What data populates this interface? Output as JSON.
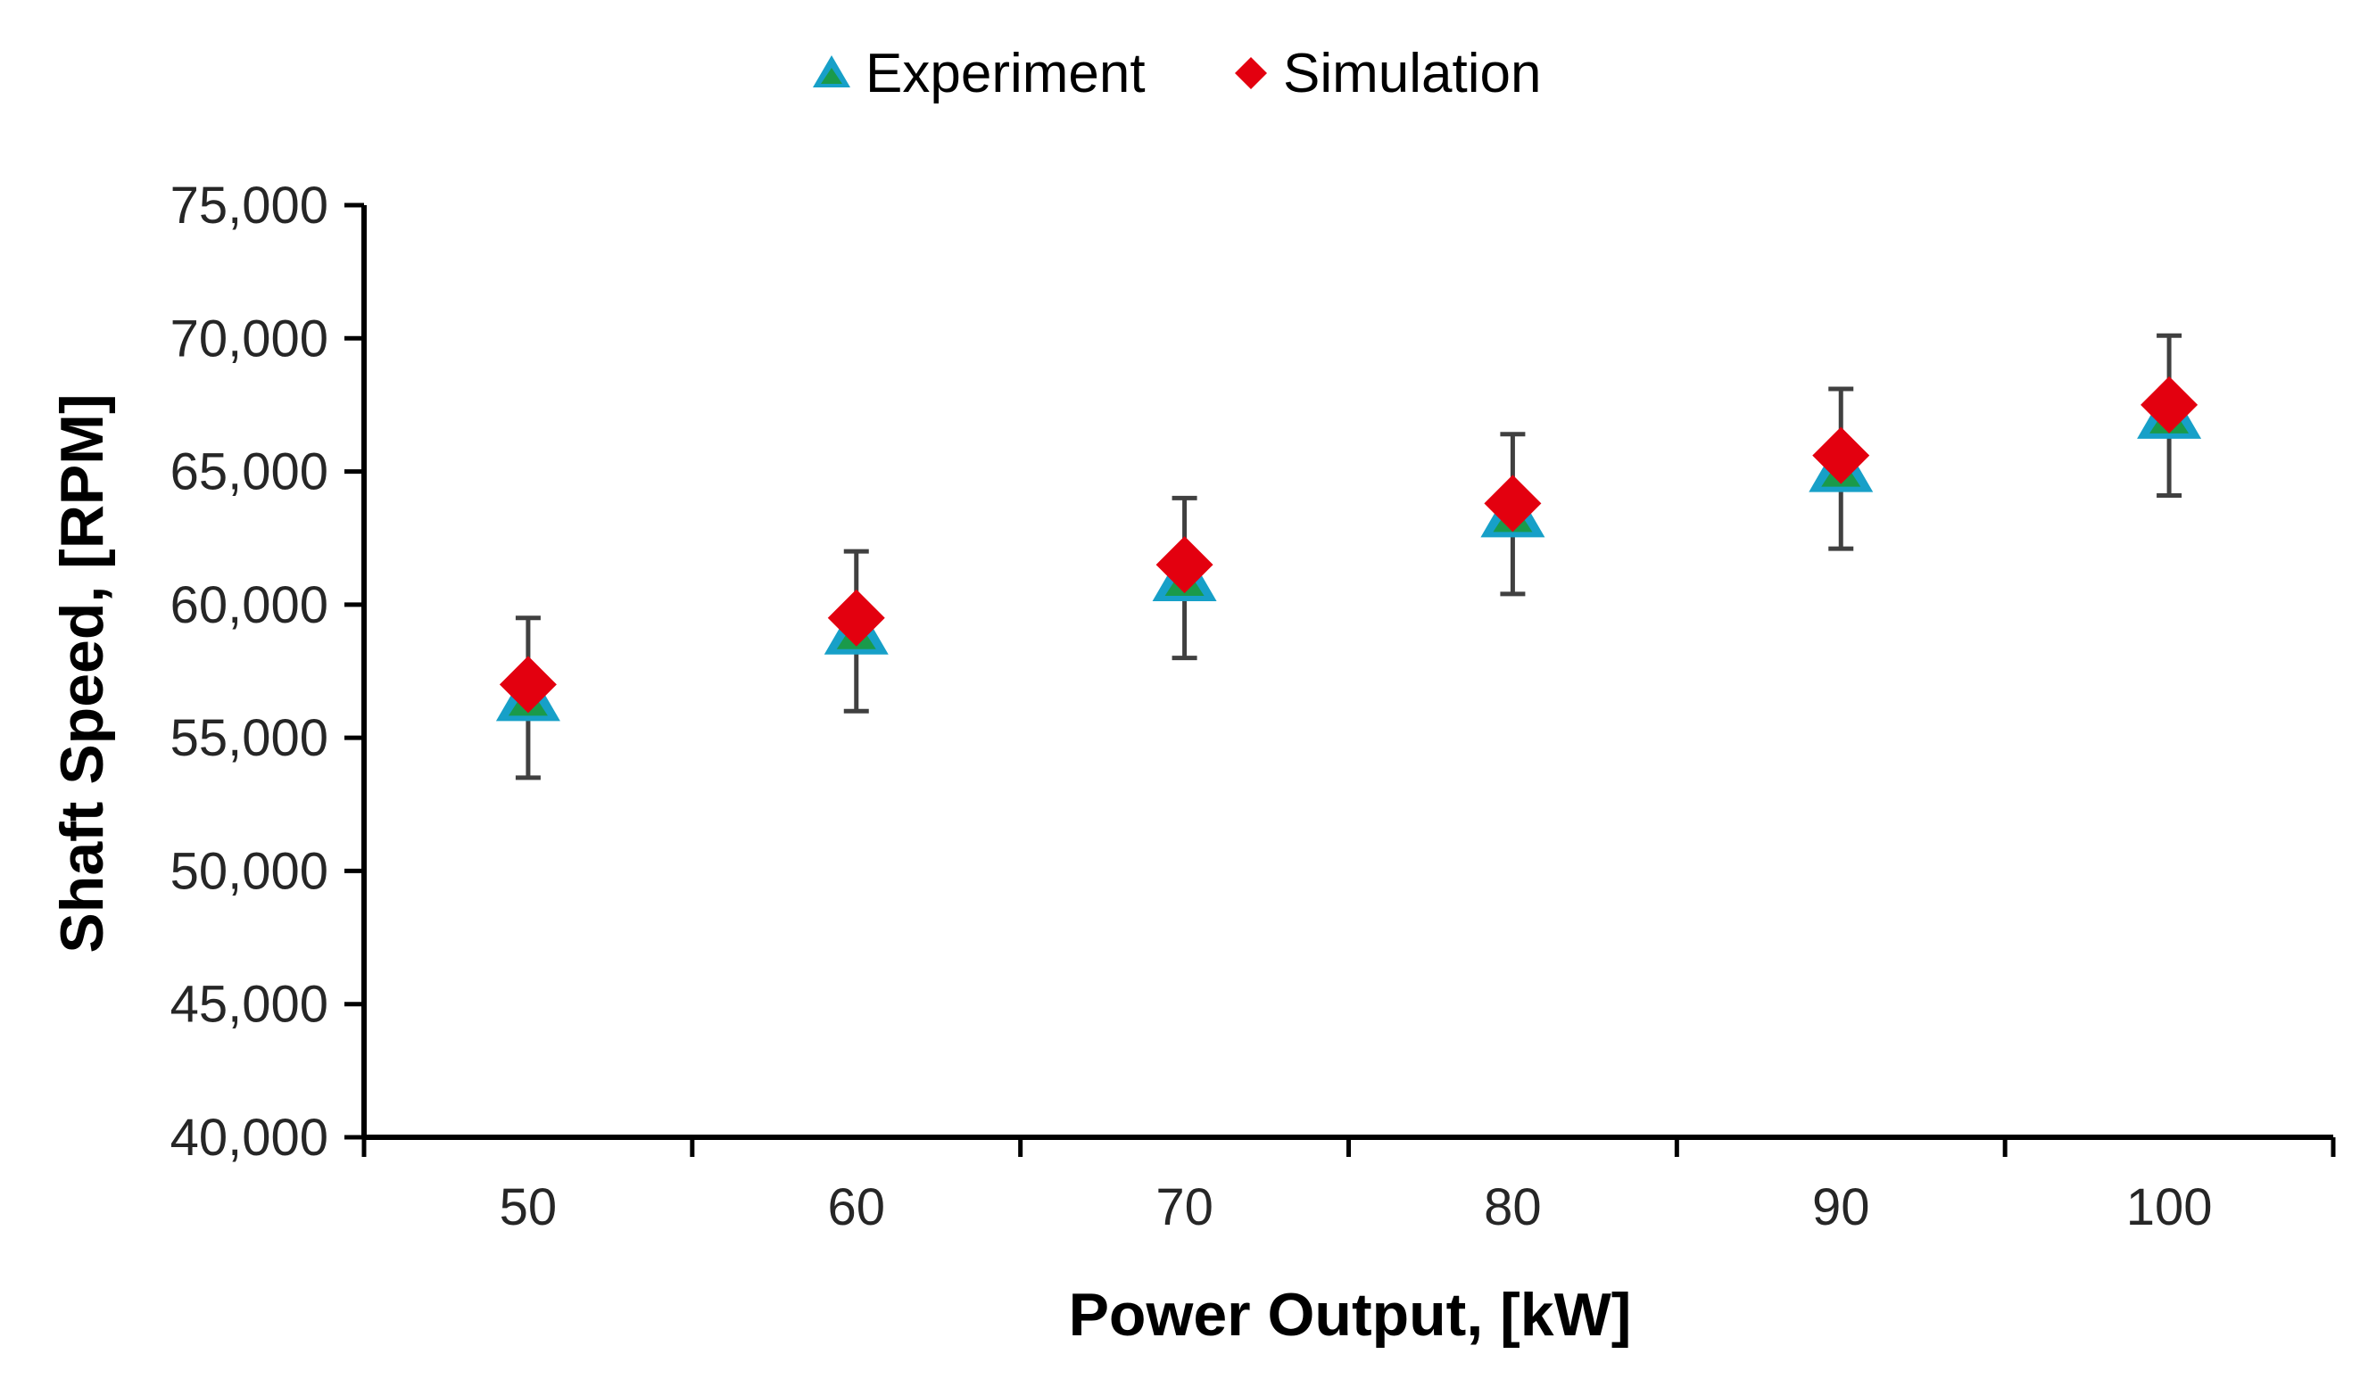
{
  "chart_data": {
    "type": "scatter",
    "title": "",
    "xlabel": "Power Output, [kW]",
    "ylabel": "Shaft Speed, [RPM]",
    "categories": [
      "50",
      "60",
      "70",
      "80",
      "90",
      "100"
    ],
    "ylim": [
      40000,
      75000
    ],
    "yticks": [
      40000,
      45000,
      50000,
      55000,
      60000,
      65000,
      70000,
      75000
    ],
    "ytick_labels": [
      "40,000",
      "45,000",
      "50,000",
      "55,000",
      "60,000",
      "65,000",
      "70,000",
      "75,000"
    ],
    "grid": false,
    "legend_position": "top-center",
    "series": [
      {
        "name": "Experiment",
        "marker": "triangle",
        "color": "#17A0C8",
        "fill_inner": "#1A9A4A",
        "values": [
          56500,
          59000,
          61000,
          63400,
          65100,
          67100
        ],
        "error_bars": [
          3000,
          3000,
          3000,
          3000,
          3000,
          3000
        ]
      },
      {
        "name": "Simulation",
        "marker": "diamond",
        "color": "#E3000F",
        "values": [
          57000,
          59500,
          61500,
          63800,
          65600,
          67500
        ]
      }
    ],
    "error_bar_color": "#404040",
    "axis_color": "#000000"
  }
}
